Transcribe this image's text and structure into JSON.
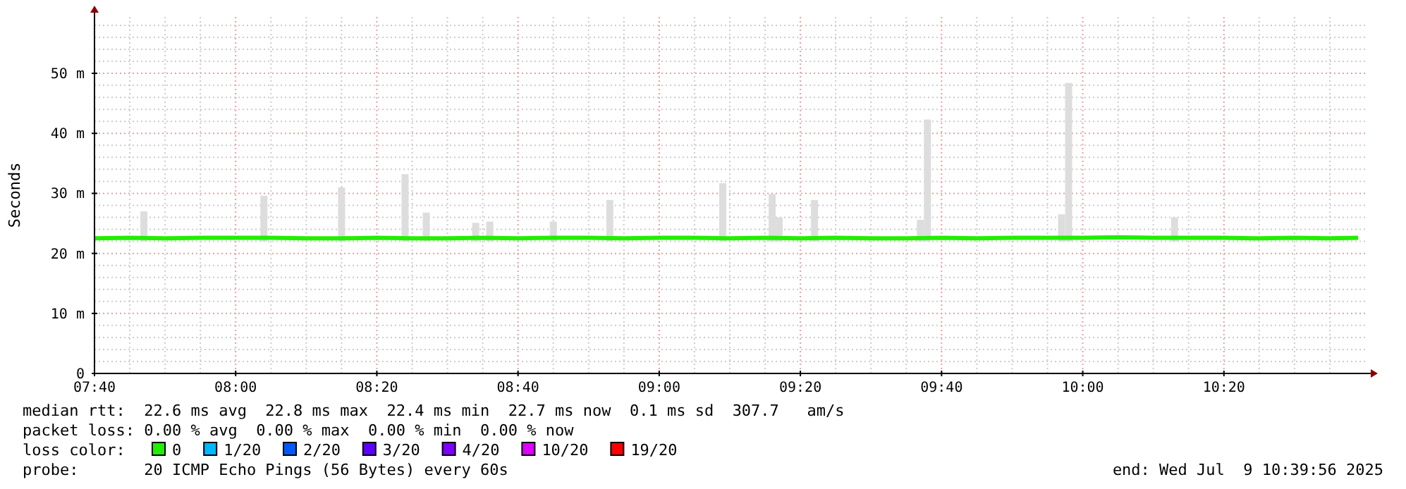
{
  "chart_data": {
    "type": "bar",
    "ylabel": "Seconds",
    "xlim": [
      "2025-07-09T07:40",
      "2025-07-09T10:40"
    ],
    "xticks": [
      {
        "value": "2025-07-09T07:40",
        "label": "07:40"
      },
      {
        "value": "2025-07-09T08:00",
        "label": "08:00"
      },
      {
        "value": "2025-07-09T08:20",
        "label": "08:20"
      },
      {
        "value": "2025-07-09T08:40",
        "label": "08:40"
      },
      {
        "value": "2025-07-09T09:00",
        "label": "09:00"
      },
      {
        "value": "2025-07-09T09:20",
        "label": "09:20"
      },
      {
        "value": "2025-07-09T09:40",
        "label": "09:40"
      },
      {
        "value": "2025-07-09T10:00",
        "label": "10:00"
      },
      {
        "value": "2025-07-09T10:20",
        "label": "10:20"
      }
    ],
    "ylim": [
      0,
      59.4
    ],
    "yticks": [
      0,
      {
        "value": 10,
        "label": "10 m"
      },
      {
        "value": 20,
        "label": "20 m"
      },
      {
        "value": 30,
        "label": "30 m"
      },
      {
        "value": 40,
        "label": "40 m"
      },
      {
        "value": 50,
        "label": "50 m"
      }
    ],
    "grid": true,
    "legend": "bottom",
    "legend_title": "loss color:",
    "series": [
      {
        "color": "#dddddd",
        "base": [
          22,
          22,
          22,
          22,
          22,
          22,
          22,
          22,
          22,
          22,
          22,
          22,
          22,
          22,
          22,
          22,
          22,
          22
        ],
        "x": [
          "2025-07-09T07:47",
          "2025-07-09T08:04",
          "2025-07-09T08:15",
          "2025-07-09T08:24",
          "2025-07-09T08:27",
          "2025-07-09T08:34",
          "2025-07-09T08:36",
          "2025-07-09T08:45",
          "2025-07-09T08:53",
          "2025-07-09T09:09",
          "2025-07-09T09:16",
          "2025-07-09T09:17",
          "2025-07-09T09:22",
          "2025-07-09T09:37",
          "2025-07-09T09:38",
          "2025-07-09T09:57",
          "2025-07-09T09:58",
          "2025-07-09T10:13"
        ],
        "values": [
          5,
          7.6,
          9,
          11.2,
          4.8,
          3.1,
          3.3,
          3.3,
          6.9,
          9.7,
          7.9,
          4,
          6.9,
          3.6,
          20.3,
          4.5,
          26.4,
          4
        ]
      },
      {
        "type": "line",
        "name": "0",
        "color": "#22ee00",
        "x": [
          "2025-07-09T07:40",
          "2025-07-09T07:45",
          "2025-07-09T07:50",
          "2025-07-09T07:55",
          "2025-07-09T08:00",
          "2025-07-09T08:05",
          "2025-07-09T08:10",
          "2025-07-09T08:15",
          "2025-07-09T08:20",
          "2025-07-09T08:25",
          "2025-07-09T08:30",
          "2025-07-09T08:35",
          "2025-07-09T08:40",
          "2025-07-09T08:45",
          "2025-07-09T08:50",
          "2025-07-09T08:55",
          "2025-07-09T09:00",
          "2025-07-09T09:05",
          "2025-07-09T09:10",
          "2025-07-09T09:15",
          "2025-07-09T09:20",
          "2025-07-09T09:25",
          "2025-07-09T09:30",
          "2025-07-09T09:35",
          "2025-07-09T09:40",
          "2025-07-09T09:45",
          "2025-07-09T09:50",
          "2025-07-09T09:55",
          "2025-07-09T10:00",
          "2025-07-09T10:05",
          "2025-07-09T10:10",
          "2025-07-09T10:15",
          "2025-07-09T10:20",
          "2025-07-09T10:25",
          "2025-07-09T10:30",
          "2025-07-09T10:35",
          "2025-07-09T10:39"
        ],
        "values": [
          22.5,
          22.6,
          22.5,
          22.6,
          22.6,
          22.6,
          22.5,
          22.5,
          22.6,
          22.5,
          22.5,
          22.6,
          22.5,
          22.6,
          22.6,
          22.5,
          22.6,
          22.6,
          22.5,
          22.6,
          22.5,
          22.6,
          22.5,
          22.5,
          22.6,
          22.5,
          22.6,
          22.6,
          22.6,
          22.7,
          22.6,
          22.6,
          22.6,
          22.5,
          22.6,
          22.5,
          22.6
        ]
      },
      {
        "type": "line",
        "name": "1/20",
        "color": "#00b8ff"
      },
      {
        "type": "line",
        "name": "2/20",
        "color": "#0059ff"
      },
      {
        "type": "line",
        "name": "3/20",
        "color": "#5e00ff"
      },
      {
        "type": "line",
        "name": "4/20",
        "color": "#7e00ff"
      },
      {
        "type": "line",
        "name": "10/20",
        "color": "#dd00ff"
      },
      {
        "type": "line",
        "name": "19/20",
        "color": "#ff0000"
      }
    ],
    "annotations": [
      "median rtt:  22.6 ms avg  22.8 ms max  22.4 ms min  22.7 ms now  0.1 ms sd  307.7   am/s",
      "packet loss: 0.00 % avg  0.00 % max  0.00 % min  0.00 % now",
      "probe:       20 ICMP Echo Pings (56 Bytes) every 60s",
      "end: Wed Jul  9 10:39:56 2025"
    ]
  }
}
